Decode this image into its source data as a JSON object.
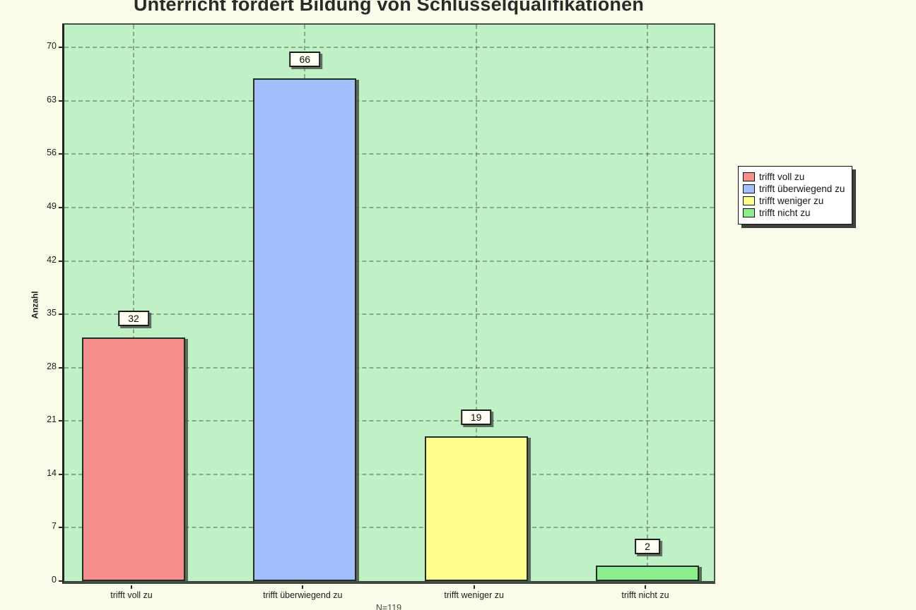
{
  "chart_data": {
    "type": "bar",
    "title": "Unterricht fördert Bildung von Schlüsselqualifikationen",
    "ylabel": "Anzahl",
    "xlabel": "",
    "categories": [
      "trifft voll zu",
      "trifft überwiegend zu",
      "trifft weniger zu",
      "trifft nicht zu"
    ],
    "values": [
      32,
      66,
      19,
      2
    ],
    "bar_colors": [
      "#f68e8e",
      "#a2bffb",
      "#fdfd8d",
      "#8ded8d"
    ],
    "value_labels_shown": true,
    "yticks": [
      0,
      7,
      14,
      21,
      28,
      35,
      42,
      49,
      56,
      63,
      70
    ],
    "ylim": [
      0,
      70
    ],
    "grid": {
      "horizontal": "dashed",
      "vertical": "dashed"
    },
    "legend_position": "right",
    "legend": {
      "entries": [
        {
          "label": "trifft voll zu",
          "color": "#f68e8e"
        },
        {
          "label": "trifft überwiegend zu",
          "color": "#a2bffb"
        },
        {
          "label": "trifft weniger zu",
          "color": "#fdfd8d"
        },
        {
          "label": "trifft nicht zu",
          "color": "#8ded8d"
        }
      ]
    },
    "bottom_note_partial": "N=119"
  },
  "colors": {
    "page_background": "#fbfbe9",
    "plot_background": "#c0f0c6",
    "legend_background": "#ffffff",
    "border": "#1f1f1f",
    "gridline": "#5a6e5a",
    "shadow": "#464646"
  }
}
